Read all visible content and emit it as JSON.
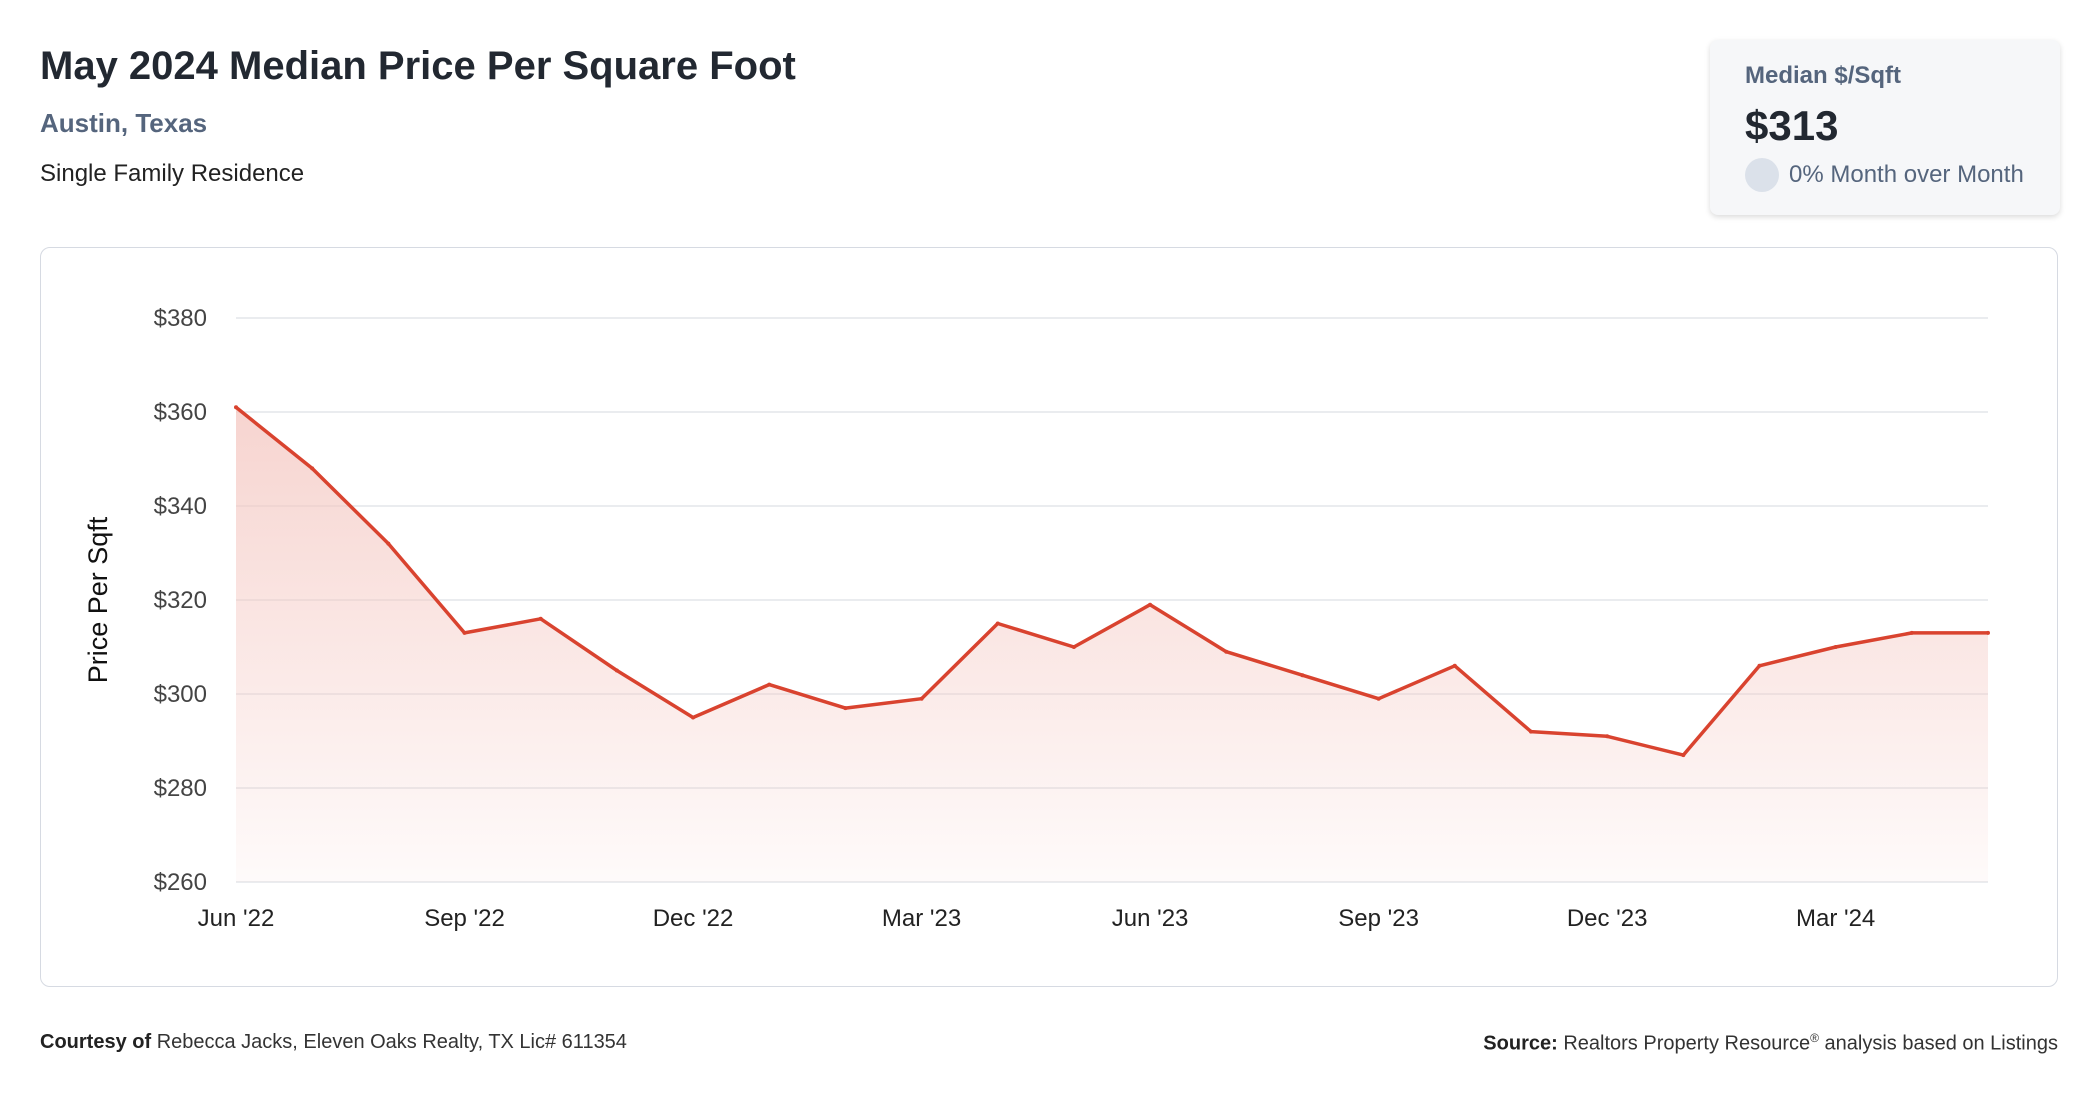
{
  "header": {
    "title": "May 2024 Median Price Per Square Foot",
    "location": "Austin, Texas",
    "property_type": "Single Family Residence"
  },
  "stat_card": {
    "label": "Median $/Sqft",
    "value": "$313",
    "change": "0% Month over Month"
  },
  "footer": {
    "courtesy_label": "Courtesy of",
    "courtesy_text": "Rebecca Jacks, Eleven Oaks Realty, TX Lic# 611354",
    "source_label": "Source:",
    "source_text_1": "Realtors Property Resource",
    "source_sup": "®",
    "source_text_2": "analysis based on Listings"
  },
  "colors": {
    "line": "#d9432f",
    "fill": "#f4c6c0",
    "grid": "#e3e6ea",
    "axis_text": "#444444"
  },
  "chart_data": {
    "type": "area",
    "ylabel": "Price Per Sqft",
    "xlabel": "",
    "ylim": [
      260,
      380
    ],
    "yticks": [
      "$380",
      "$360",
      "$340",
      "$320",
      "$300",
      "$280",
      "$260"
    ],
    "ytick_values": [
      380,
      360,
      340,
      320,
      300,
      280,
      260
    ],
    "x": [
      "Jun '22",
      "Jul '22",
      "Aug '22",
      "Sep '22",
      "Oct '22",
      "Nov '22",
      "Dec '22",
      "Jan '23",
      "Feb '23",
      "Mar '23",
      "Apr '23",
      "May '23",
      "Jun '23",
      "Jul '23",
      "Aug '23",
      "Sep '23",
      "Oct '23",
      "Nov '23",
      "Dec '23",
      "Jan '24",
      "Feb '24",
      "Mar '24",
      "Apr '24",
      "May '24"
    ],
    "xtick_labels": [
      "Jun '22",
      "Sep '22",
      "Dec '22",
      "Mar '23",
      "Jun '23",
      "Sep '23",
      "Dec '23",
      "Mar '24"
    ],
    "values": [
      361,
      348,
      332,
      313,
      316,
      305,
      295,
      302,
      297,
      299,
      315,
      310,
      319,
      309,
      304,
      299,
      306,
      292,
      291,
      287,
      306,
      310,
      313,
      313
    ],
    "grid": true,
    "legend": "none"
  }
}
